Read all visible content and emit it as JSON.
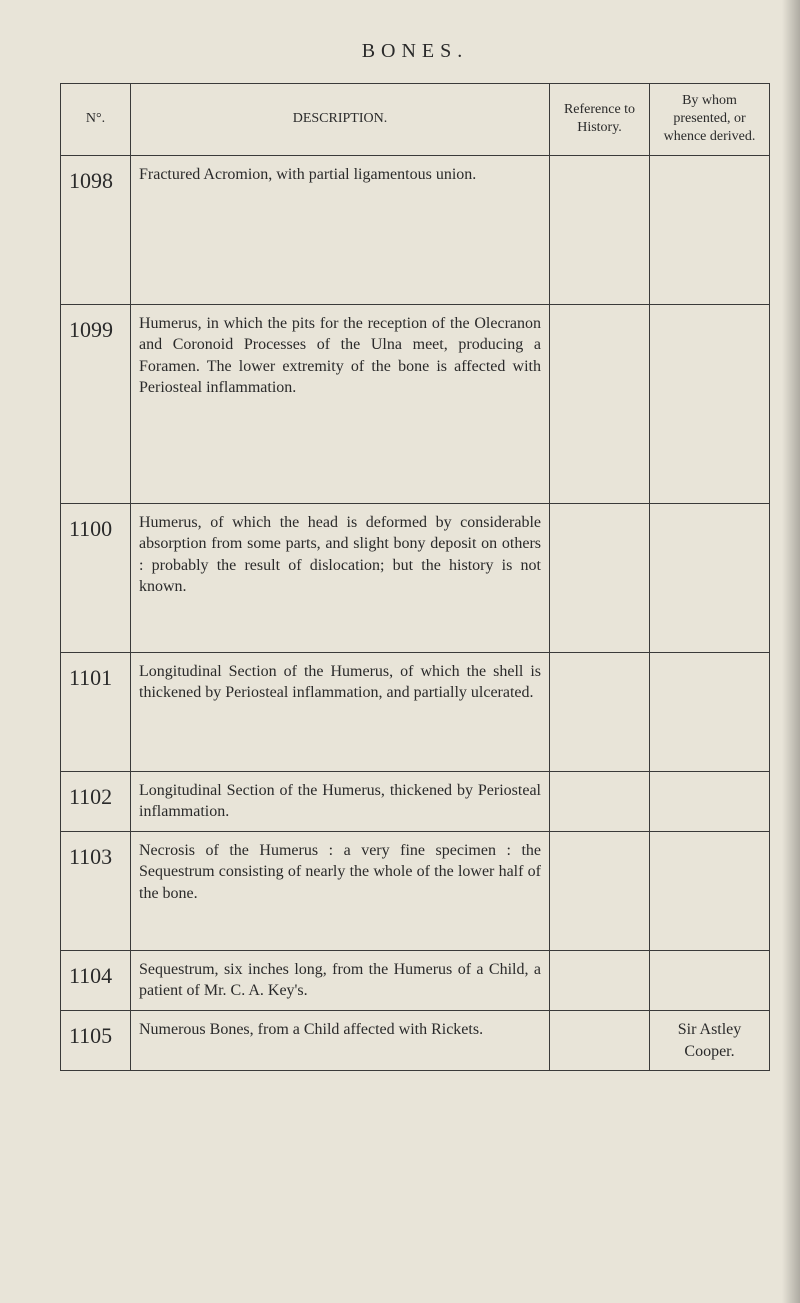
{
  "page_title": "BONES.",
  "headers": {
    "no": "N°.",
    "description": "DESCRIPTION.",
    "reference": "Reference to History.",
    "bywhom": "By whom presented, or whence derived."
  },
  "rows": [
    {
      "no": "1098",
      "desc": "Fractured Acromion, with partial ligamentous union.",
      "ref": "",
      "whom": ""
    },
    {
      "no": "1099",
      "desc": "Humerus, in which the pits for the reception of the Olecranon and Coronoid Processes of the Ulna meet, producing a Foramen. The lower extremity of the bone is affected with Periosteal inflammation.",
      "ref": "",
      "whom": ""
    },
    {
      "no": "1100",
      "desc": "Humerus, of which the head is deformed by considerable absorption from some parts, and slight bony deposit on others : probably the result of dislocation; but the history is not known.",
      "ref": "",
      "whom": ""
    },
    {
      "no": "1101",
      "desc": "Longitudinal Section of the Humerus, of which the shell is thickened by Periosteal inflammation, and partially ulcerated.",
      "ref": "",
      "whom": ""
    },
    {
      "no": "1102",
      "desc": "Longitudinal Section of the Humerus, thickened by Periosteal inflammation.",
      "ref": "",
      "whom": ""
    },
    {
      "no": "1103",
      "desc": "Necrosis of the Humerus : a very fine specimen : the Sequestrum consisting of nearly the whole of the lower half of the bone.",
      "ref": "",
      "whom": ""
    },
    {
      "no": "1104",
      "desc": "Sequestrum, six inches long, from the Humerus of a Child, a patient of Mr. C. A. Key's.",
      "ref": "",
      "whom": ""
    },
    {
      "no": "1105",
      "desc": "Numerous Bones, from a Child affected with Rickets.",
      "ref": "",
      "whom": "Sir Astley Cooper."
    }
  ],
  "styles": {
    "background_color": "#e8e4d8",
    "text_color": "#2a2a2a",
    "border_color": "#3a3a3a",
    "title_fontsize": 20,
    "title_letterspacing": 6,
    "header_fontsize": 14,
    "body_fontsize": 16,
    "no_fontsize": 22,
    "col_widths": {
      "no": 70,
      "ref": 100,
      "whom": 120
    }
  }
}
